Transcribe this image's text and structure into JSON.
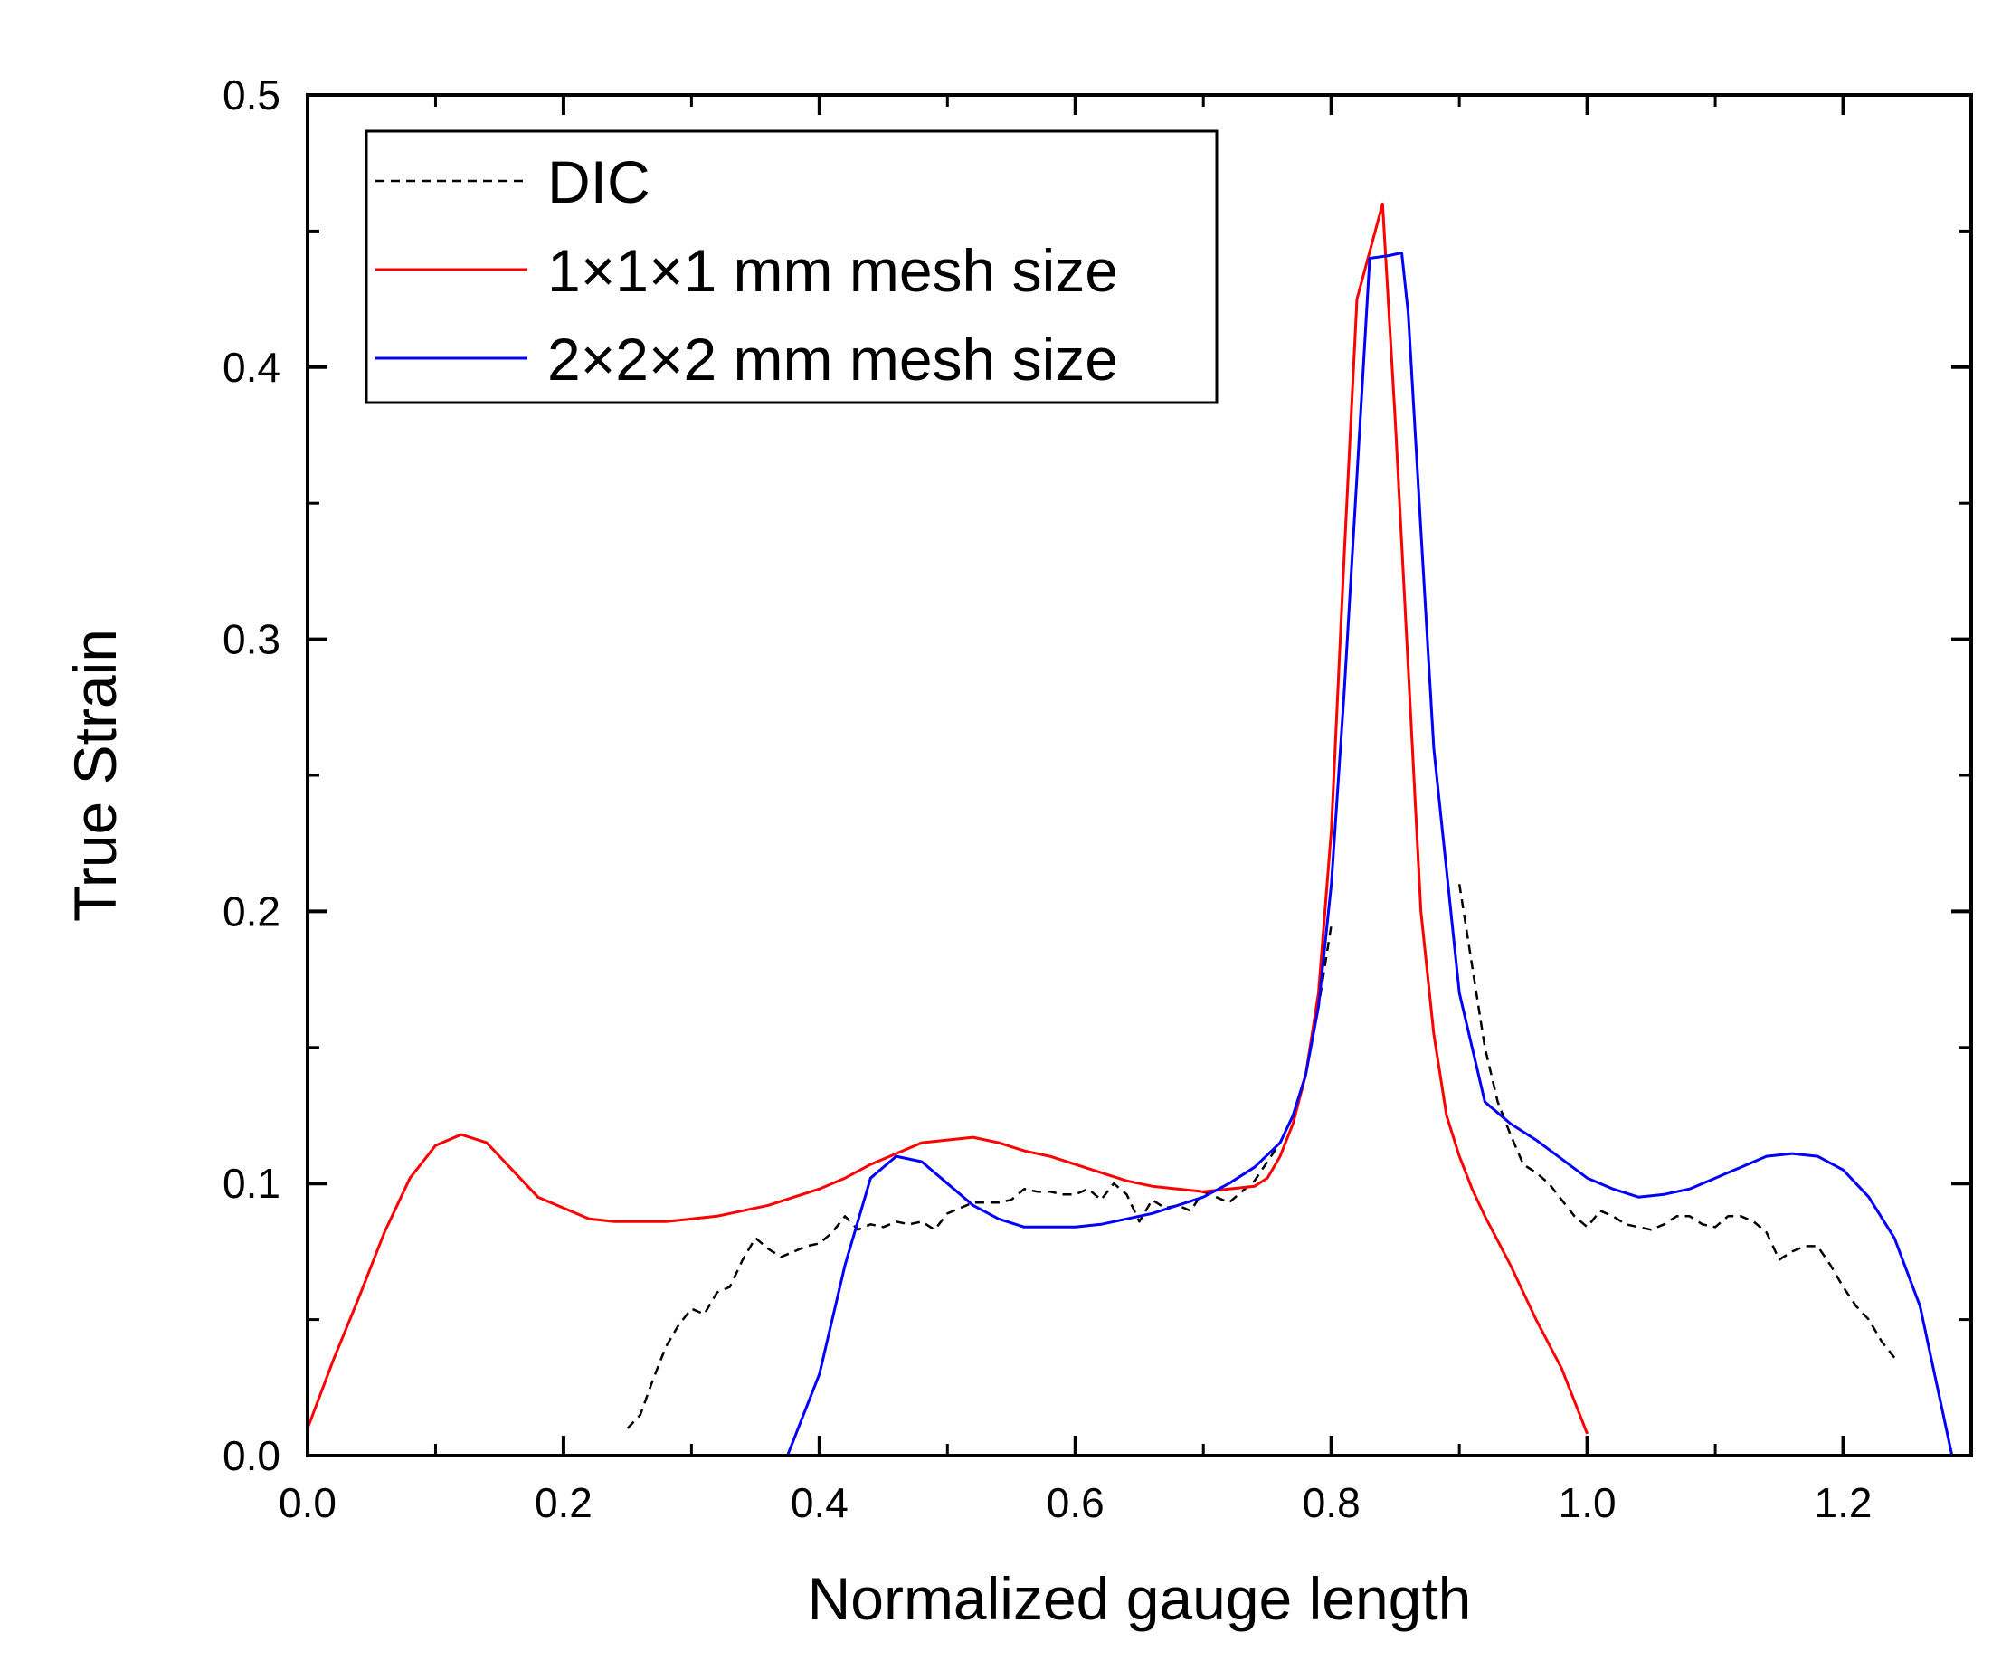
{
  "chart_data": {
    "type": "line",
    "xlabel": "Normalized gauge length",
    "ylabel": "True Strain",
    "xlim": [
      0.0,
      1.3
    ],
    "ylim": [
      0.0,
      0.5
    ],
    "xticks": [
      0.0,
      0.2,
      0.4,
      0.6,
      0.8,
      1.0,
      1.2
    ],
    "xtick_labels": [
      "0.0",
      "0.2",
      "0.4",
      "0.6",
      "0.8",
      "1.0",
      "1.2"
    ],
    "yticks": [
      0.0,
      0.1,
      0.2,
      0.3,
      0.4,
      0.5
    ],
    "ytick_labels": [
      "0.0",
      "0.1",
      "0.2",
      "0.3",
      "0.4",
      "0.5"
    ],
    "grid": false,
    "legend": "top-left",
    "series": [
      {
        "name": "DIC",
        "color": "#000000",
        "style": "dashed",
        "segments": [
          {
            "x": [
              0.25,
              0.26,
              0.27,
              0.28,
              0.29,
              0.3,
              0.31,
              0.32,
              0.33,
              0.34,
              0.35,
              0.36,
              0.37,
              0.38,
              0.39,
              0.4,
              0.41,
              0.42,
              0.43,
              0.44,
              0.45,
              0.46,
              0.47,
              0.48,
              0.49,
              0.5,
              0.51,
              0.52,
              0.53,
              0.54,
              0.55,
              0.56,
              0.57,
              0.58,
              0.59,
              0.6,
              0.61,
              0.62,
              0.63,
              0.64,
              0.65,
              0.66,
              0.67,
              0.68,
              0.69,
              0.7,
              0.71,
              0.72,
              0.73,
              0.74,
              0.75,
              0.76,
              0.77,
              0.78,
              0.79,
              0.8
            ],
            "y": [
              0.01,
              0.015,
              0.028,
              0.04,
              0.048,
              0.054,
              0.052,
              0.06,
              0.062,
              0.072,
              0.08,
              0.076,
              0.073,
              0.075,
              0.077,
              0.078,
              0.082,
              0.088,
              0.083,
              0.085,
              0.084,
              0.086,
              0.085,
              0.086,
              0.083,
              0.089,
              0.091,
              0.093,
              0.093,
              0.093,
              0.094,
              0.098,
              0.097,
              0.097,
              0.096,
              0.096,
              0.098,
              0.094,
              0.1,
              0.096,
              0.086,
              0.094,
              0.091,
              0.092,
              0.09,
              0.097,
              0.095,
              0.093,
              0.097,
              0.101,
              0.108,
              0.115,
              0.125,
              0.14,
              0.165,
              0.195
            ]
          },
          {
            "x": [
              0.9,
              0.91,
              0.92,
              0.93,
              0.94,
              0.95,
              0.96,
              0.97,
              0.98,
              0.99,
              1.0,
              1.01,
              1.02,
              1.03,
              1.04,
              1.05,
              1.06,
              1.07,
              1.08,
              1.09,
              1.1,
              1.11,
              1.12,
              1.13,
              1.14,
              1.15,
              1.16,
              1.17,
              1.18,
              1.19,
              1.2,
              1.21,
              1.22,
              1.23,
              1.24
            ],
            "y": [
              0.21,
              0.18,
              0.15,
              0.13,
              0.118,
              0.107,
              0.104,
              0.1,
              0.094,
              0.088,
              0.084,
              0.09,
              0.088,
              0.085,
              0.084,
              0.083,
              0.085,
              0.088,
              0.088,
              0.085,
              0.084,
              0.088,
              0.088,
              0.086,
              0.082,
              0.072,
              0.075,
              0.077,
              0.077,
              0.07,
              0.062,
              0.055,
              0.05,
              0.042,
              0.036
            ]
          }
        ]
      },
      {
        "name": "1×1×1 mm mesh size",
        "color": "#ff0000",
        "style": "solid",
        "segments": [
          {
            "x": [
              0.0,
              0.02,
              0.04,
              0.06,
              0.08,
              0.1,
              0.12,
              0.14,
              0.16,
              0.18,
              0.2,
              0.22,
              0.24,
              0.26,
              0.28,
              0.3,
              0.32,
              0.34,
              0.36,
              0.38,
              0.4,
              0.42,
              0.44,
              0.46,
              0.48,
              0.5,
              0.52,
              0.54,
              0.56,
              0.58,
              0.6,
              0.62,
              0.64,
              0.66,
              0.68,
              0.7,
              0.72,
              0.74,
              0.75,
              0.76,
              0.77,
              0.78,
              0.79,
              0.8,
              0.81,
              0.82,
              0.84,
              0.85,
              0.86,
              0.87,
              0.88,
              0.89,
              0.9,
              0.91,
              0.92,
              0.94,
              0.96,
              0.98,
              1.0
            ],
            "y": [
              0.01,
              0.035,
              0.058,
              0.082,
              0.102,
              0.114,
              0.118,
              0.115,
              0.105,
              0.095,
              0.091,
              0.087,
              0.086,
              0.086,
              0.086,
              0.087,
              0.088,
              0.09,
              0.092,
              0.095,
              0.098,
              0.102,
              0.107,
              0.111,
              0.115,
              0.116,
              0.117,
              0.115,
              0.112,
              0.11,
              0.107,
              0.104,
              0.101,
              0.099,
              0.098,
              0.097,
              0.098,
              0.099,
              0.102,
              0.11,
              0.122,
              0.14,
              0.17,
              0.23,
              0.33,
              0.425,
              0.46,
              0.38,
              0.29,
              0.2,
              0.155,
              0.125,
              0.11,
              0.098,
              0.088,
              0.07,
              0.05,
              0.032,
              0.008
            ]
          }
        ]
      },
      {
        "name": "2×2×2 mm mesh size",
        "color": "#0000ff",
        "style": "solid",
        "segments": [
          {
            "x": [
              0.375,
              0.4,
              0.42,
              0.44,
              0.46,
              0.48,
              0.5,
              0.52,
              0.54,
              0.56,
              0.58,
              0.6,
              0.62,
              0.64,
              0.66,
              0.68,
              0.7,
              0.72,
              0.74,
              0.76,
              0.77,
              0.78,
              0.79,
              0.8,
              0.81,
              0.82,
              0.83,
              0.845,
              0.855,
              0.86,
              0.87,
              0.88,
              0.9,
              0.92,
              0.94,
              0.96,
              0.98,
              1.0,
              1.02,
              1.04,
              1.06,
              1.08,
              1.1,
              1.12,
              1.14,
              1.16,
              1.18,
              1.2,
              1.22,
              1.24,
              1.26,
              1.285
            ],
            "y": [
              0.0,
              0.03,
              0.07,
              0.102,
              0.11,
              0.108,
              0.1,
              0.092,
              0.087,
              0.084,
              0.084,
              0.084,
              0.085,
              0.087,
              0.089,
              0.092,
              0.095,
              0.1,
              0.106,
              0.115,
              0.125,
              0.14,
              0.165,
              0.21,
              0.28,
              0.36,
              0.44,
              0.441,
              0.442,
              0.42,
              0.34,
              0.26,
              0.17,
              0.13,
              0.122,
              0.116,
              0.109,
              0.102,
              0.098,
              0.095,
              0.096,
              0.098,
              0.102,
              0.106,
              0.11,
              0.111,
              0.11,
              0.105,
              0.095,
              0.08,
              0.055,
              0.0
            ]
          }
        ]
      }
    ]
  }
}
